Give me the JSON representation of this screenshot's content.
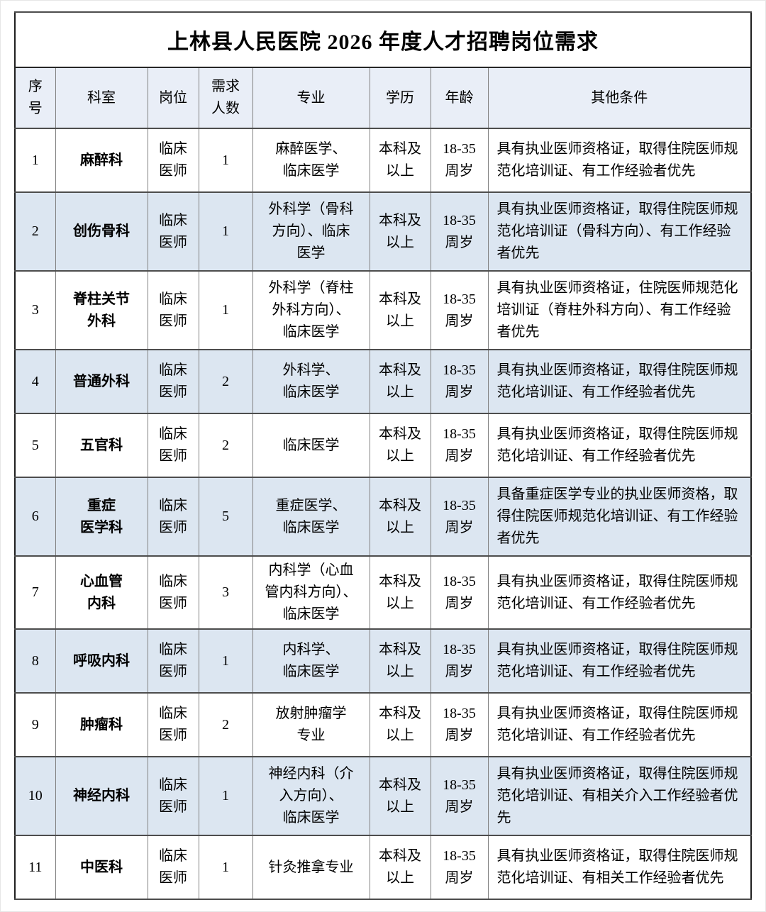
{
  "page": {
    "title": "上林县人民医院 2026 年度人才招聘岗位需求"
  },
  "colors": {
    "header_bg": "#e9eef7",
    "row_alt_bg": "#dce6f1",
    "outer_border": "#1f1f1f",
    "inner_border": "#808080",
    "text": "#000000"
  },
  "table": {
    "headers": [
      "序\n号",
      "科室",
      "岗位",
      "需求\n人数",
      "专业",
      "学历",
      "年龄",
      "其他条件"
    ],
    "rows": [
      {
        "no": "1",
        "dept": "麻醉科",
        "position": "临床\n医师",
        "count": "1",
        "major": "麻醉医学、\n临床医学",
        "education": "本科及\n以上",
        "age": "18-35\n周岁",
        "other": "具有执业医师资格证，取得住院医师规范化培训证、有工作经验者优先"
      },
      {
        "no": "2",
        "dept": "创伤骨科",
        "position": "临床\n医师",
        "count": "1",
        "major": "外科学（骨科\n方向）、临床\n医学",
        "education": "本科及\n以上",
        "age": "18-35\n周岁",
        "other": "具有执业医师资格证，取得住院医师规范化培训证（骨科方向）、有工作经验者优先"
      },
      {
        "no": "3",
        "dept": "脊柱关节\n外科",
        "position": "临床\n医师",
        "count": "1",
        "major": "外科学（脊柱\n外科方向）、\n临床医学",
        "education": "本科及\n以上",
        "age": "18-35\n周岁",
        "other": "具有执业医师资格证，住院医师规范化培训证（脊柱外科方向）、有工作经验者优先"
      },
      {
        "no": "4",
        "dept": "普通外科",
        "position": "临床\n医师",
        "count": "2",
        "major": "外科学、\n临床医学",
        "education": "本科及\n以上",
        "age": "18-35\n周岁",
        "other": "具有执业医师资格证，取得住院医师规范化培训证、有工作经验者优先"
      },
      {
        "no": "5",
        "dept": "五官科",
        "position": "临床\n医师",
        "count": "2",
        "major": "临床医学",
        "education": "本科及\n以上",
        "age": "18-35\n周岁",
        "other": "具有执业医师资格证，取得住院医师规范化培训证、有工作经验者优先"
      },
      {
        "no": "6",
        "dept": "重症\n医学科",
        "position": "临床\n医师",
        "count": "5",
        "major": "重症医学、\n临床医学",
        "education": "本科及\n以上",
        "age": "18-35\n周岁",
        "other": "具备重症医学专业的执业医师资格，取得住院医师规范化培训证、有工作经验者优先"
      },
      {
        "no": "7",
        "dept": "心血管\n内科",
        "position": "临床\n医师",
        "count": "3",
        "major": "内科学（心血\n管内科方向）、\n临床医学",
        "education": "本科及\n以上",
        "age": "18-35\n周岁",
        "other": "具有执业医师资格证，取得住院医师规范化培训证、有工作经验者优先"
      },
      {
        "no": "8",
        "dept": "呼吸内科",
        "position": "临床\n医师",
        "count": "1",
        "major": "内科学、\n临床医学",
        "education": "本科及\n以上",
        "age": "18-35\n周岁",
        "other": "具有执业医师资格证，取得住院医师规范化培训证、有工作经验者优先"
      },
      {
        "no": "9",
        "dept": "肿瘤科",
        "position": "临床\n医师",
        "count": "2",
        "major": "放射肿瘤学\n专业",
        "education": "本科及\n以上",
        "age": "18-35\n周岁",
        "other": "具有执业医师资格证，取得住院医师规范化培训证、有工作经验者优先"
      },
      {
        "no": "10",
        "dept": "神经内科",
        "position": "临床\n医师",
        "count": "1",
        "major": "神经内科（介\n入方向）、\n临床医学",
        "education": "本科及\n以上",
        "age": "18-35\n周岁",
        "other": "具有执业医师资格证，取得住院医师规范化培训证、有相关介入工作经验者优先"
      },
      {
        "no": "11",
        "dept": "中医科",
        "position": "临床\n医师",
        "count": "1",
        "major": "针灸推拿专业",
        "education": "本科及\n以上",
        "age": "18-35\n周岁",
        "other": "具有执业医师资格证，取得住院医师规范化培训证、有相关工作经验者优先"
      }
    ]
  }
}
